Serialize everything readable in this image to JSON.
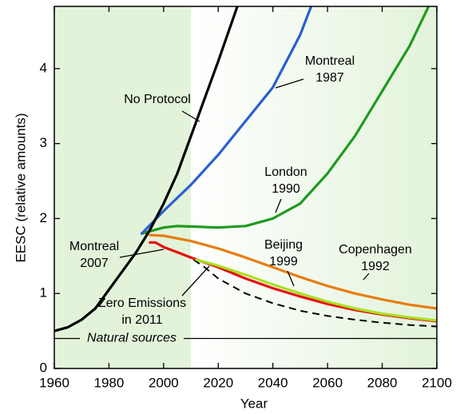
{
  "chart_data": {
    "type": "line",
    "xlabel": "Year",
    "ylabel": "EESC (relative amounts)",
    "xlim": [
      1960,
      2100
    ],
    "xticks": [
      1960,
      1980,
      2000,
      2020,
      2040,
      2060,
      2080,
      2100
    ],
    "ylim": [
      0,
      4.83
    ],
    "yticks": [
      0,
      1,
      2,
      3,
      4
    ],
    "natural_sources": {
      "label": "Natural sources",
      "value": 0.4
    },
    "series": [
      {
        "label_lines": [
          "Zero Emissions",
          "in 2011"
        ],
        "color": "#000000",
        "dash": true,
        "x": [
          2011,
          2015,
          2020,
          2030,
          2040,
          2050,
          2060,
          2070,
          2080,
          2090,
          2100
        ],
        "values": [
          1.45,
          1.35,
          1.2,
          1.0,
          0.87,
          0.77,
          0.7,
          0.65,
          0.61,
          0.58,
          0.56
        ]
      },
      {
        "label_lines": [
          "Montreal",
          "2007"
        ],
        "color": "#e81010",
        "x": [
          1995,
          1997,
          2000,
          2005,
          2010,
          2020,
          2030,
          2040,
          2050,
          2060,
          2070,
          2080,
          2090,
          2100
        ],
        "values": [
          1.68,
          1.68,
          1.62,
          1.55,
          1.48,
          1.35,
          1.2,
          1.07,
          0.96,
          0.86,
          0.78,
          0.72,
          0.67,
          0.63
        ]
      },
      {
        "label_lines": [
          "Beijing",
          "1999"
        ],
        "color": "#a8e020",
        "x": [
          2012,
          2020,
          2030,
          2040,
          2050,
          2060,
          2070,
          2080,
          2090,
          2100
        ],
        "values": [
          1.45,
          1.37,
          1.25,
          1.12,
          1.0,
          0.89,
          0.8,
          0.73,
          0.68,
          0.64
        ]
      },
      {
        "label_lines": [
          "Copenhagen",
          "1992"
        ],
        "color": "#e87d10",
        "x": [
          1995,
          2000,
          2010,
          2020,
          2030,
          2040,
          2050,
          2060,
          2070,
          2080,
          2090,
          2100
        ],
        "values": [
          1.78,
          1.77,
          1.7,
          1.6,
          1.48,
          1.35,
          1.22,
          1.1,
          1.0,
          0.92,
          0.85,
          0.8
        ]
      },
      {
        "label_lines": [
          "London",
          "1990"
        ],
        "color": "#1f9a1f",
        "x": [
          1992,
          2000,
          2005,
          2020,
          2030,
          2040,
          2050,
          2060,
          2070,
          2080,
          2090,
          2097
        ],
        "values": [
          1.8,
          1.88,
          1.9,
          1.88,
          1.9,
          2.0,
          2.2,
          2.6,
          3.1,
          3.7,
          4.3,
          4.83
        ]
      },
      {
        "label_lines": [
          "Montreal",
          "1987"
        ],
        "color": "#2a5fd0",
        "x": [
          1992,
          2000,
          2010,
          2020,
          2030,
          2040,
          2050,
          2054
        ],
        "values": [
          1.8,
          2.1,
          2.45,
          2.85,
          3.3,
          3.75,
          4.45,
          4.83
        ]
      },
      {
        "label_lines": [
          "No Protocol"
        ],
        "color": "#000000",
        "x": [
          1960,
          1965,
          1970,
          1975,
          1980,
          1985,
          1990,
          1995,
          2000,
          2005,
          2010,
          2015,
          2020,
          2027
        ],
        "values": [
          0.5,
          0.55,
          0.65,
          0.8,
          1.05,
          1.3,
          1.55,
          1.85,
          2.2,
          2.6,
          3.1,
          3.6,
          4.1,
          4.83
        ]
      }
    ]
  }
}
